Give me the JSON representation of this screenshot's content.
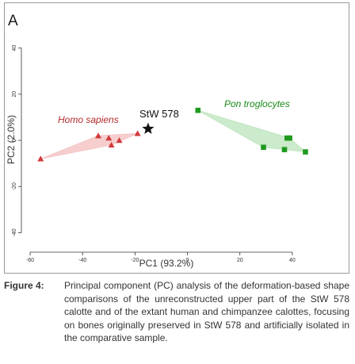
{
  "panel_label": "A",
  "caption": {
    "label": "Figure 4:",
    "text": "Principal component (PC) analysis of the deformation-based shape comparisons of the unreconstructed upper part of the StW 578 calotte and of the extant human and chimpanzee calottes, focusing on bones originally preserved in StW 578 and artificially isolated in the comparative sample."
  },
  "chart_data": {
    "type": "scatter",
    "xlabel": "PC1 (93.2%)",
    "ylabel": "PC2 (2.0%)",
    "xlim": [
      -60,
      50
    ],
    "ylim": [
      -45,
      45
    ],
    "xticks": [
      -60,
      -40,
      -20,
      0,
      20,
      40
    ],
    "yticks": [
      -40,
      -20,
      0,
      20,
      40
    ],
    "xtick_labels": [
      "-60",
      "-40",
      "-20",
      "0",
      "20",
      "40"
    ],
    "ytick_labels": [
      "-40",
      "-20",
      "0",
      "20",
      "40"
    ],
    "grid": false,
    "series": [
      {
        "name": "Homo sapiens",
        "marker": "triangle",
        "color": "#d23a3a",
        "hull_color": "#f4c6c6",
        "points": [
          [
            -56,
            -8
          ],
          [
            -34,
            2
          ],
          [
            -30,
            1
          ],
          [
            -29,
            -2
          ],
          [
            -26,
            0
          ],
          [
            -19,
            3
          ]
        ]
      },
      {
        "name": "Pon troglocytes",
        "marker": "square",
        "color": "#1f9a1f",
        "hull_color": "#c3e6c3",
        "points": [
          [
            4,
            13
          ],
          [
            29,
            -3
          ],
          [
            37,
            -4
          ],
          [
            38,
            1
          ],
          [
            39,
            1
          ],
          [
            45,
            -5
          ]
        ]
      },
      {
        "name": "StW 578",
        "marker": "star",
        "color": "#111111",
        "points": [
          [
            -15,
            5
          ]
        ]
      }
    ]
  }
}
